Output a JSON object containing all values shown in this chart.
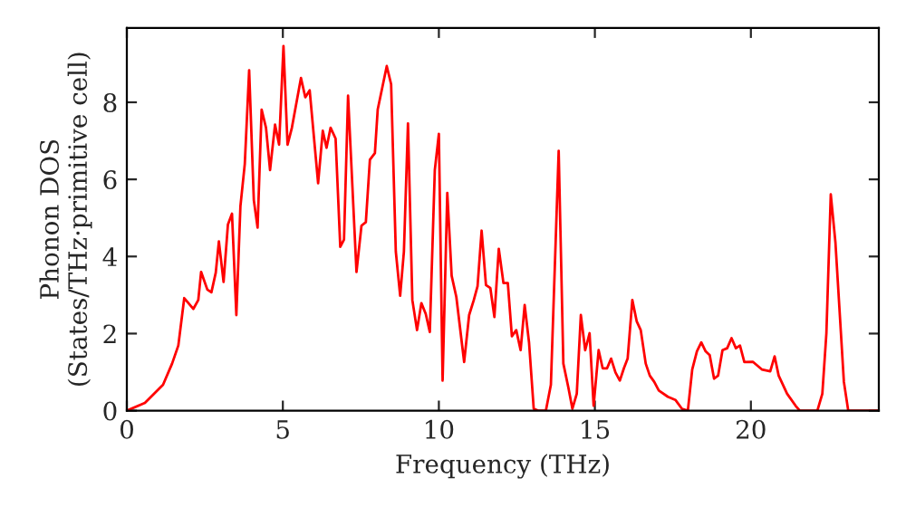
{
  "chart_data": {
    "type": "line",
    "xlabel": "Frequency (THz)",
    "ylabel": "Phonon DOS\n(States/THz·primitive cell)",
    "xlim": [
      0,
      24.1
    ],
    "ylim": [
      0,
      9.93
    ],
    "xticks": [
      0,
      5,
      10,
      15,
      20
    ],
    "yticks": [
      0,
      2,
      4,
      6,
      8
    ],
    "grid": false,
    "legend": false,
    "marker": "none",
    "line_style": "solid",
    "series": [
      {
        "color": "#ff0000",
        "x": [
          0,
          0.58,
          1.16,
          1.45,
          1.65,
          1.84,
          2.13,
          2.29,
          2.38,
          2.58,
          2.71,
          2.85,
          2.95,
          3.1,
          3.24,
          3.37,
          3.51,
          3.64,
          3.78,
          3.92,
          4.07,
          4.19,
          4.32,
          4.46,
          4.59,
          4.75,
          4.88,
          5.02,
          5.15,
          5.29,
          5.58,
          5.72,
          5.86,
          6.13,
          6.28,
          6.4,
          6.53,
          6.69,
          6.84,
          6.96,
          7.09,
          7.36,
          7.52,
          7.66,
          7.79,
          7.95,
          8.04,
          8.33,
          8.47,
          8.62,
          8.76,
          8.88,
          9.01,
          9.15,
          9.3,
          9.44,
          9.58,
          9.71,
          9.87,
          10.0,
          10.12,
          10.27,
          10.41,
          10.56,
          10.81,
          10.97,
          11.12,
          11.24,
          11.37,
          11.51,
          11.65,
          11.78,
          11.92,
          12.07,
          12.21,
          12.34,
          12.48,
          12.62,
          12.75,
          12.89,
          13.04,
          13.18,
          13.43,
          13.59,
          13.84,
          13.99,
          14.15,
          14.28,
          14.42,
          14.55,
          14.69,
          14.83,
          14.96,
          15.12,
          15.25,
          15.39,
          15.52,
          15.66,
          15.8,
          15.93,
          16.05,
          16.2,
          16.34,
          16.47,
          16.63,
          16.76,
          16.9,
          17.05,
          17.34,
          17.58,
          17.79,
          17.98,
          18.12,
          18.27,
          18.41,
          18.55,
          18.68,
          18.82,
          18.95,
          19.09,
          19.24,
          19.38,
          19.52,
          19.65,
          19.79,
          20.06,
          20.35,
          20.62,
          20.76,
          20.89,
          21.16,
          21.43,
          21.57,
          22.13,
          22.29,
          22.42,
          22.56,
          22.71,
          22.98,
          23.12,
          24.1
        ],
        "values": [
          0,
          0.2,
          0.67,
          1.22,
          1.69,
          2.92,
          2.64,
          2.87,
          3.6,
          3.14,
          3.07,
          3.58,
          4.39,
          3.34,
          4.83,
          5.11,
          2.48,
          5.3,
          6.4,
          8.83,
          5.46,
          4.75,
          7.81,
          7.34,
          6.24,
          7.42,
          6.9,
          9.46,
          6.9,
          7.34,
          8.63,
          8.13,
          8.31,
          5.9,
          7.26,
          6.82,
          7.34,
          7.06,
          4.25,
          4.44,
          8.17,
          3.6,
          4.8,
          4.89,
          6.51,
          6.68,
          7.81,
          8.94,
          8.47,
          4.13,
          2.98,
          4.13,
          7.45,
          2.87,
          2.09,
          2.79,
          2.51,
          2.04,
          6.24,
          7.18,
          0.78,
          5.65,
          3.5,
          2.95,
          1.26,
          2.48,
          2.87,
          3.23,
          4.67,
          3.26,
          3.18,
          2.43,
          4.2,
          3.31,
          3.31,
          1.93,
          2.09,
          1.57,
          2.74,
          1.77,
          0.05,
          0,
          0,
          0.67,
          6.74,
          1.22,
          0.6,
          0.05,
          0.44,
          2.48,
          1.57,
          2.01,
          0.13,
          1.57,
          1.1,
          1.1,
          1.35,
          0.99,
          0.78,
          1.1,
          1.35,
          2.87,
          2.32,
          2.09,
          1.22,
          0.91,
          0.75,
          0.52,
          0.36,
          0.28,
          0.05,
          0,
          1.07,
          1.54,
          1.77,
          1.54,
          1.44,
          0.83,
          0.91,
          1.57,
          1.62,
          1.88,
          1.62,
          1.69,
          1.26,
          1.27,
          1.07,
          1.02,
          1.41,
          0.91,
          0.44,
          0.13,
          0,
          0,
          0.44,
          2.01,
          5.61,
          4.36,
          0.75,
          0,
          0
        ]
      }
    ]
  }
}
